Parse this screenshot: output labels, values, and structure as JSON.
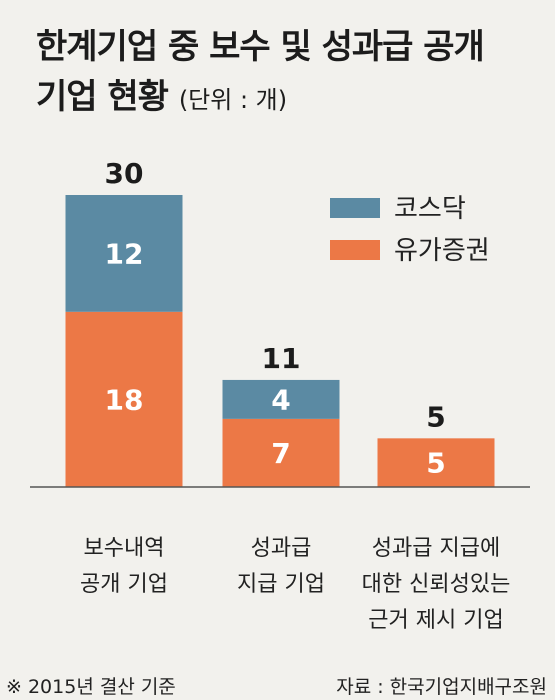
{
  "title": {
    "line1": "한계기업 중 보수 및 성과급 공개",
    "line2": "기업 현황",
    "unit": "(단위 : 개)"
  },
  "colors": {
    "kosdaq": "#5b8aa3",
    "kospi": "#ec7846",
    "axis": "#555555",
    "background": "#f2f1ed"
  },
  "chart_data": {
    "type": "bar",
    "stacked": true,
    "categories": [
      [
        "보수내역",
        "공개 기업"
      ],
      [
        "성과급",
        "지급 기업"
      ],
      [
        "성과급 지급에",
        "대한 신뢰성있는",
        "근거 제시 기업"
      ]
    ],
    "series": [
      {
        "name": "유가증권",
        "values": [
          18,
          7,
          5
        ]
      },
      {
        "name": "코스닥",
        "values": [
          12,
          4,
          0
        ]
      }
    ],
    "totals": [
      30,
      11,
      5
    ],
    "ylim": [
      0,
      30
    ],
    "legend": [
      "코스닥",
      "유가증권"
    ],
    "legend_position": "top-right",
    "grid": false
  },
  "footer": {
    "note": "※ 2015년 결산 기준",
    "source": "자료 : 한국기업지배구조원"
  }
}
